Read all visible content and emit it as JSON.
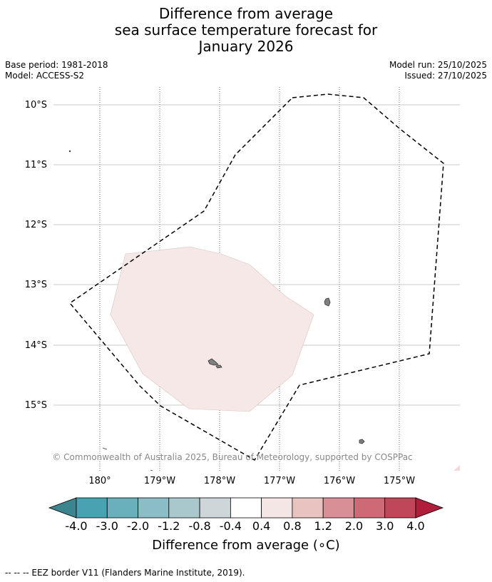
{
  "title": {
    "line1": "Difference from average",
    "line2": "sea surface temperature forecast for",
    "line3": "January 2026"
  },
  "meta": {
    "base_period": "Base period: 1981-2018",
    "model": "Model: ACCESS-S2",
    "model_run": "Model run: 25/10/2025",
    "issued": "Issued: 27/10/2025"
  },
  "map": {
    "lat_labels": [
      "10°S",
      "11°S",
      "12°S",
      "13°S",
      "14°S",
      "15°S"
    ],
    "lon_labels": [
      "180°",
      "179°W",
      "178°W",
      "177°W",
      "176°W",
      "175°W"
    ],
    "copyright": "© Commonwealth of Australia 2025, Bureau of Meteorology, supported by COSPPac",
    "anomaly_fill": "#f5e8e6",
    "eez_color": "#000000",
    "land_color": "#808080"
  },
  "colorbar": {
    "tick_labels": [
      "-4.0",
      "-3.0",
      "-2.0",
      "-1.2",
      "-0.8",
      "-0.4",
      "0.4",
      "0.8",
      "1.2",
      "2.0",
      "3.0",
      "4.0"
    ],
    "colors": [
      "#49a2b2",
      "#6aafbc",
      "#8bbdc7",
      "#a8c8ce",
      "#cdd7d9",
      "#ffffff",
      "#f3e6e5",
      "#e8c3bf",
      "#d98f96",
      "#cd6a76",
      "#c04759"
    ],
    "low_color": "#3c858f",
    "high_color": "#b01e3c",
    "label": "Difference from average (",
    "label_unit": "∘C)"
  },
  "footer": "--  --  -- EEZ border V11 (Flanders Marine Institute, 2019)."
}
